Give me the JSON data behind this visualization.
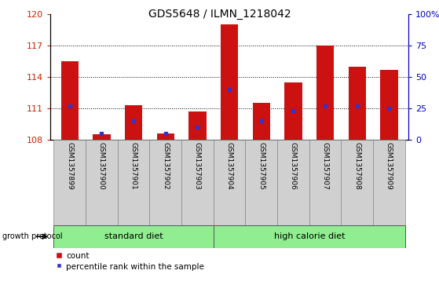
{
  "title": "GDS5648 / ILMN_1218042",
  "samples": [
    "GSM1357899",
    "GSM1357900",
    "GSM1357901",
    "GSM1357902",
    "GSM1357903",
    "GSM1357904",
    "GSM1357905",
    "GSM1357906",
    "GSM1357907",
    "GSM1357908",
    "GSM1357909"
  ],
  "count_values": [
    115.5,
    108.5,
    111.3,
    108.6,
    110.7,
    119.0,
    111.5,
    113.5,
    117.0,
    115.0,
    114.7
  ],
  "percentile_values": [
    27,
    5,
    15,
    5,
    10,
    40,
    15,
    23,
    27,
    27,
    25
  ],
  "y_min": 108,
  "y_max": 120,
  "y_ticks_left": [
    108,
    111,
    114,
    117,
    120
  ],
  "y_ticks_right": [
    0,
    25,
    50,
    75,
    100
  ],
  "bar_color": "#cc1111",
  "percentile_color": "#3333cc",
  "groups": [
    {
      "label": "standard diet",
      "start": 0,
      "end": 4,
      "color": "#90ee90"
    },
    {
      "label": "high calorie diet",
      "start": 5,
      "end": 10,
      "color": "#90ee90"
    }
  ],
  "legend_items": [
    {
      "label": "count",
      "color": "#cc1111"
    },
    {
      "label": "percentile rank within the sample",
      "color": "#3333cc"
    }
  ],
  "tick_label_color_left": "#cc2200",
  "tick_label_color_right": "#0000cc",
  "bar_width": 0.55
}
